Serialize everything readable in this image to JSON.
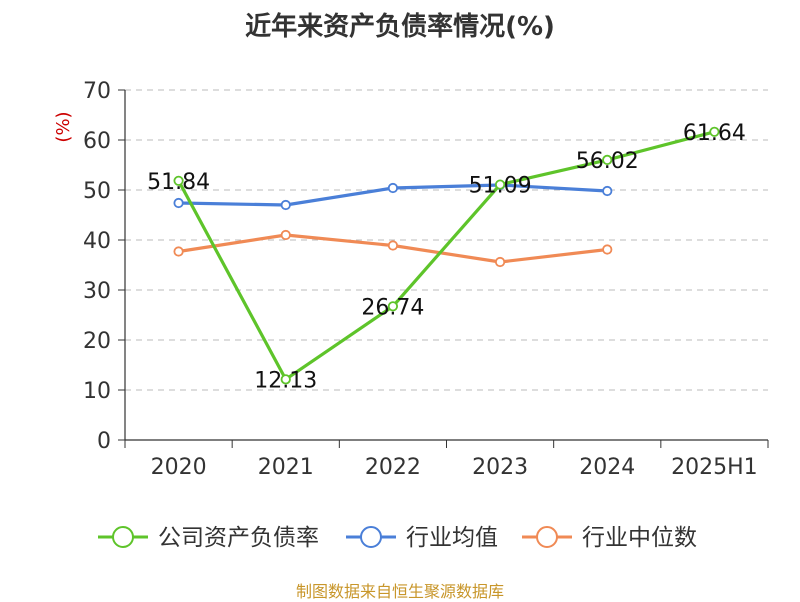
{
  "chart_data": {
    "type": "line",
    "title": "近年来资产负债率情况(%)",
    "ylabel": "(%)",
    "xlabel": "",
    "categories": [
      "2020",
      "2021",
      "2022",
      "2023",
      "2024",
      "2025H1"
    ],
    "ylim": [
      0,
      70
    ],
    "yticks": [
      0,
      10,
      20,
      30,
      40,
      50,
      60,
      70
    ],
    "grid": true,
    "legend_position": "bottom",
    "series": [
      {
        "name": "公司资产负债率",
        "color": "#5ec42a",
        "values": [
          51.84,
          12.13,
          26.74,
          51.09,
          56.02,
          61.64
        ],
        "labels": [
          "51.84",
          "12.13",
          "26.74",
          "51.09",
          "56.02",
          "61.64"
        ]
      },
      {
        "name": "行业均值",
        "color": "#4a7fd8",
        "values": [
          47.4,
          47.0,
          50.4,
          51.0,
          49.8,
          null
        ]
      },
      {
        "name": "行业中位数",
        "color": "#f08a55",
        "values": [
          37.7,
          41.0,
          38.9,
          35.6,
          38.1,
          null
        ]
      }
    ]
  },
  "footer": {
    "source": "制图数据来自恒生聚源数据库"
  }
}
